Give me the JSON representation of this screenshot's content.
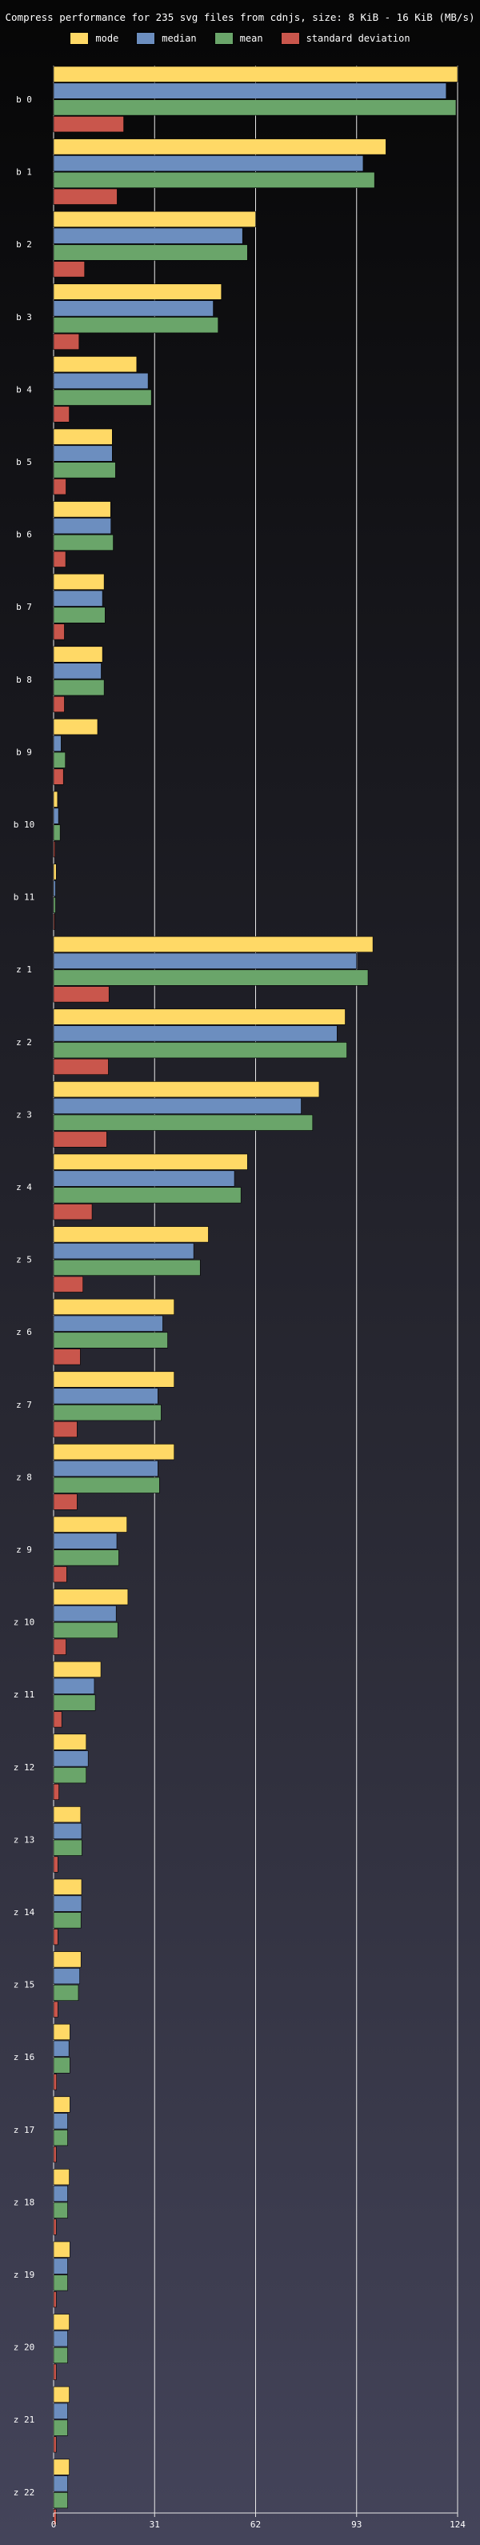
{
  "chart_data": {
    "type": "bar",
    "orientation": "horizontal",
    "title": "Compress performance for 235 svg files from cdnjs, size: 8 KiB - 16 KiB (MB/s)",
    "xlabel": "",
    "ylabel": "",
    "xlim": [
      0,
      124
    ],
    "x_ticks": [
      "0",
      "31",
      "62",
      "93",
      "124"
    ],
    "grid": true,
    "legend_position": "top",
    "categories": [
      "b 0",
      "b 1",
      "b 2",
      "b 3",
      "b 4",
      "b 5",
      "b 6",
      "b 7",
      "b 8",
      "b 9",
      "b 10",
      "b 11",
      "z 1",
      "z 2",
      "z 3",
      "z 4",
      "z 5",
      "z 6",
      "z 7",
      "z 8",
      "z 9",
      "z 10",
      "z 11",
      "z 12",
      "z 13",
      "z 14",
      "z 15",
      "z 16",
      "z 17",
      "z 18",
      "z 19",
      "z 20",
      "z 21",
      "z 22"
    ],
    "series": [
      {
        "name": "mode",
        "color": "#ffd966",
        "values": [
          124.0,
          102.0,
          62.0,
          51.5,
          25.5,
          18.0,
          17.5,
          15.5,
          15.0,
          13.5,
          1.2,
          0.8,
          98.0,
          89.5,
          81.5,
          59.5,
          47.5,
          37.0,
          37.0,
          37.0,
          22.5,
          22.8,
          14.5,
          10.0,
          8.3,
          8.6,
          8.4,
          5.0,
          5.0,
          4.8,
          5.0,
          4.8,
          4.8,
          4.8
        ]
      },
      {
        "name": "median",
        "color": "#6c8ebf",
        "values": [
          120.5,
          95.0,
          58.0,
          49.0,
          29.0,
          18.0,
          17.6,
          15.0,
          14.6,
          2.3,
          1.5,
          0.6,
          93.0,
          87.0,
          76.0,
          55.5,
          43.0,
          33.5,
          32.0,
          32.0,
          19.4,
          19.2,
          12.5,
          10.6,
          8.6,
          8.6,
          8.0,
          4.7,
          4.3,
          4.3,
          4.3,
          4.3,
          4.3,
          4.3
        ]
      },
      {
        "name": "mean",
        "color": "#6aa56a",
        "values": [
          123.5,
          98.5,
          59.5,
          50.5,
          30.0,
          19.0,
          18.3,
          15.8,
          15.5,
          3.6,
          2.0,
          0.6,
          96.5,
          90.0,
          79.5,
          57.5,
          45.0,
          35.0,
          33.0,
          32.5,
          20.0,
          19.7,
          12.8,
          10.0,
          8.7,
          8.4,
          7.6,
          5.0,
          4.3,
          4.3,
          4.3,
          4.3,
          4.3,
          4.3
        ]
      },
      {
        "name": "standard deviation",
        "color": "#c9564c",
        "values": [
          21.5,
          19.5,
          9.5,
          7.8,
          4.8,
          3.8,
          3.7,
          3.3,
          3.3,
          3.0,
          0.4,
          0.3,
          17.0,
          16.8,
          16.3,
          11.8,
          9.0,
          8.2,
          7.2,
          7.2,
          4.0,
          3.8,
          2.5,
          1.6,
          1.3,
          1.3,
          1.3,
          0.9,
          0.8,
          0.8,
          0.8,
          0.8,
          0.8,
          0.8
        ]
      }
    ]
  }
}
